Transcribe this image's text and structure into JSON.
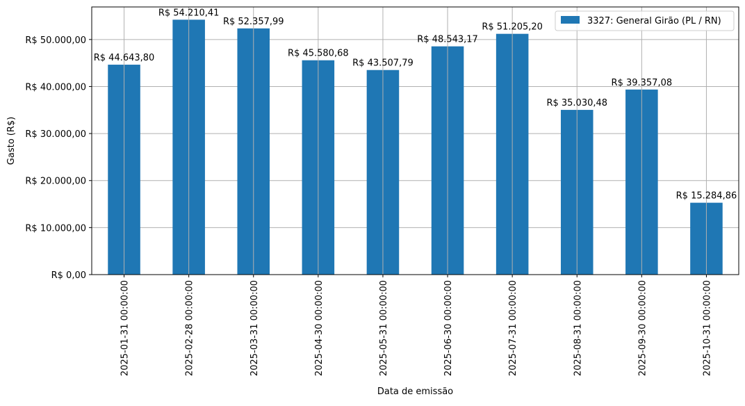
{
  "chart_data": {
    "type": "bar",
    "xlabel": "Data de emissão",
    "ylabel": "Gasto (R$)",
    "categories": [
      "2025-01-31 00:00:00",
      "2025-02-28 00:00:00",
      "2025-03-31 00:00:00",
      "2025-04-30 00:00:00",
      "2025-05-31 00:00:00",
      "2025-06-30 00:00:00",
      "2025-07-31 00:00:00",
      "2025-08-31 00:00:00",
      "2025-09-30 00:00:00",
      "2025-10-31 00:00:00"
    ],
    "series": [
      {
        "name": "3327: General Girão (PL / RN)",
        "color": "#1f77b4",
        "values": [
          44643.8,
          54210.41,
          52357.99,
          45580.68,
          43507.79,
          48543.17,
          51205.2,
          35030.48,
          39357.08,
          15284.86
        ]
      }
    ],
    "data_labels": [
      "R$ 44.643,80",
      "R$ 54.210,41",
      "R$ 52.357,99",
      "R$ 45.580,68",
      "R$ 43.507,79",
      "R$ 48.543,17",
      "R$ 51.205,20",
      "R$ 35.030,48",
      "R$ 39.357,08",
      "R$ 15.284,86"
    ],
    "yticks": [
      0,
      10000,
      20000,
      30000,
      40000,
      50000
    ],
    "ytick_labels": [
      "R$ 0,00",
      "R$ 10.000,00",
      "R$ 20.000,00",
      "R$ 30.000,00",
      "R$ 40.000,00",
      "R$ 50.000,00"
    ],
    "ylim": [
      0,
      56921.43
    ],
    "grid": true,
    "legend_position": "top-right"
  }
}
